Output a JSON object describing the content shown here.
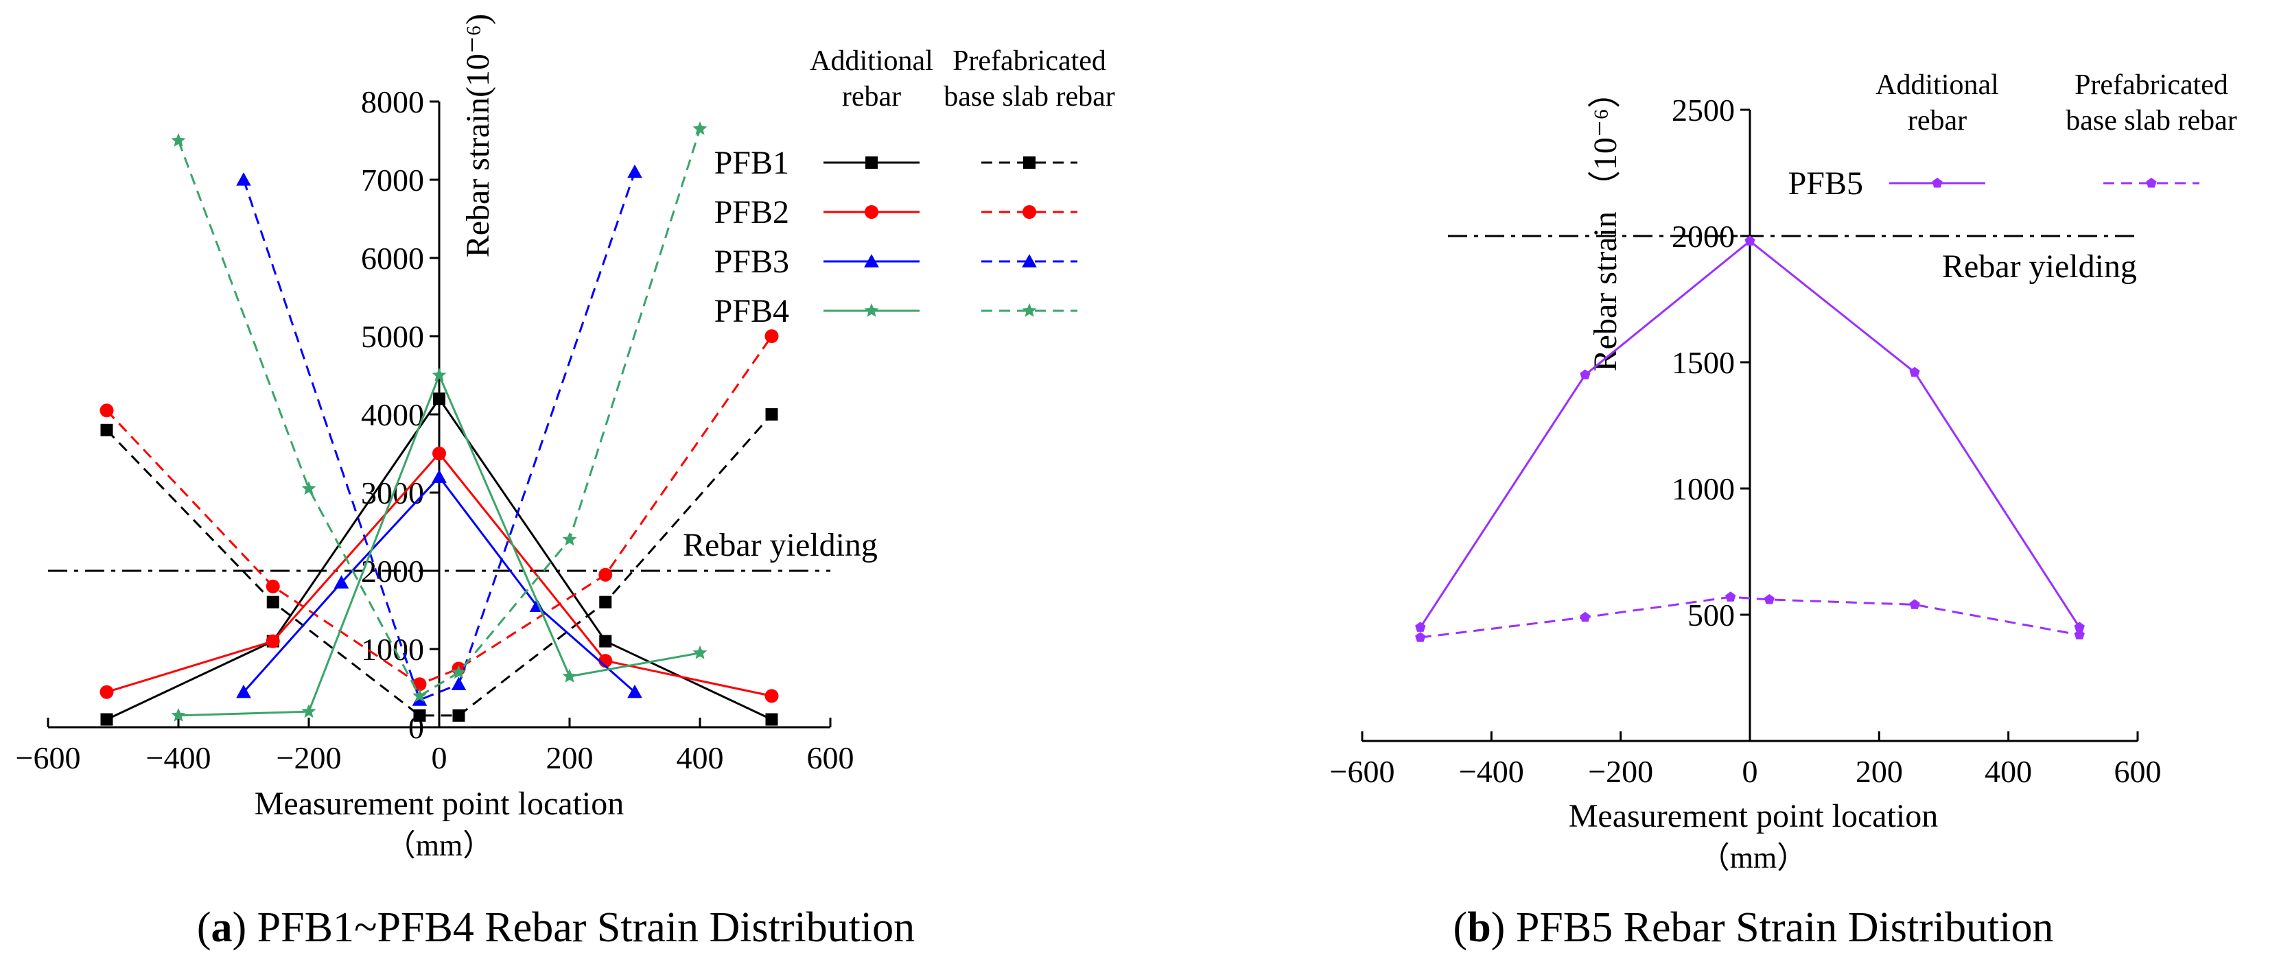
{
  "chart_data": [
    {
      "type": "line",
      "caption_letter": "a",
      "caption_text": ") PFB1~PFB4 Rebar Strain Distribution",
      "caption_open": "(",
      "ylabel": "Rebar strain(10⁻⁶)",
      "xlabel": "Measurement point location",
      "xunit": "（mm）",
      "xlim": [
        -600,
        600
      ],
      "ylim": [
        0,
        8000
      ],
      "xticks": [
        -600,
        -400,
        -200,
        0,
        200,
        400,
        600
      ],
      "yticks": [
        0,
        1000,
        2000,
        3000,
        4000,
        5000,
        6000,
        7000,
        8000
      ],
      "yield_line": {
        "value": 2000,
        "label": "Rebar yielding"
      },
      "legend": {
        "col1_line1": "Additional",
        "col1_line2": "rebar",
        "col2_line1": "Prefabricated",
        "col2_line2": "base slab rebar"
      },
      "series": [
        {
          "name": "PFB1",
          "color": "#000000",
          "marker": "square",
          "additional": {
            "x": [
              -510,
              -255,
              0,
              255,
              510
            ],
            "y": [
              100,
              1100,
              4200,
              1100,
              100
            ]
          },
          "prefabricated": {
            "x": [
              -510,
              -255,
              -30,
              30,
              255,
              510
            ],
            "y": [
              3800,
              1600,
              150,
              150,
              1600,
              4000
            ]
          }
        },
        {
          "name": "PFB2",
          "color": "#ff0000",
          "marker": "circle",
          "additional": {
            "x": [
              -510,
              -255,
              0,
              255,
              510
            ],
            "y": [
              450,
              1100,
              3500,
              850,
              400
            ]
          },
          "prefabricated": {
            "x": [
              -510,
              -255,
              -30,
              30,
              255,
              510
            ],
            "y": [
              4050,
              1800,
              550,
              750,
              1950,
              5000
            ]
          }
        },
        {
          "name": "PFB3",
          "color": "#0000ff",
          "marker": "triangle",
          "additional": {
            "x": [
              -300,
              -150,
              0,
              150,
              300
            ],
            "y": [
              450,
              1850,
              3200,
              1550,
              450
            ]
          },
          "prefabricated": {
            "x": [
              -300,
              -30,
              30,
              300
            ],
            "y": [
              7000,
              350,
              550,
              7100
            ]
          }
        },
        {
          "name": "PFB4",
          "color": "#3aa56a",
          "marker": "star",
          "additional": {
            "x": [
              -400,
              -200,
              0,
              200,
              400
            ],
            "y": [
              150,
              200,
              4500,
              650,
              950
            ]
          },
          "prefabricated": {
            "x": [
              -400,
              -200,
              -30,
              30,
              200,
              400
            ],
            "y": [
              7500,
              3050,
              400,
              700,
              2400,
              7650
            ]
          }
        }
      ]
    },
    {
      "type": "line",
      "caption_letter": "b",
      "caption_text": ") PFB5 Rebar Strain Distribution",
      "caption_open": "(",
      "ylabel": "Rebar strain （10⁻⁶）",
      "xlabel": "Measurement point location",
      "xunit": "（mm）",
      "xlim": [
        -600,
        600
      ],
      "ylim": [
        0,
        2500
      ],
      "xticks": [
        -600,
        -400,
        -200,
        0,
        200,
        400,
        600
      ],
      "yticks": [
        500,
        1000,
        1500,
        2000,
        2500
      ],
      "yield_line": {
        "value": 2000,
        "label": "Rebar yielding"
      },
      "legend": {
        "col1_line1": "Additional",
        "col1_line2": "rebar",
        "col2_line1": "Prefabricated",
        "col2_line2": "base slab rebar"
      },
      "series": [
        {
          "name": "PFB5",
          "color": "#9b30ff",
          "marker": "pentagon",
          "additional": {
            "x": [
              -510,
              -255,
              0,
              255,
              510
            ],
            "y": [
              450,
              1450,
              1980,
              1460,
              450
            ]
          },
          "prefabricated": {
            "x": [
              -510,
              -255,
              -30,
              30,
              255,
              510
            ],
            "y": [
              410,
              490,
              570,
              560,
              540,
              420
            ]
          }
        }
      ]
    }
  ]
}
